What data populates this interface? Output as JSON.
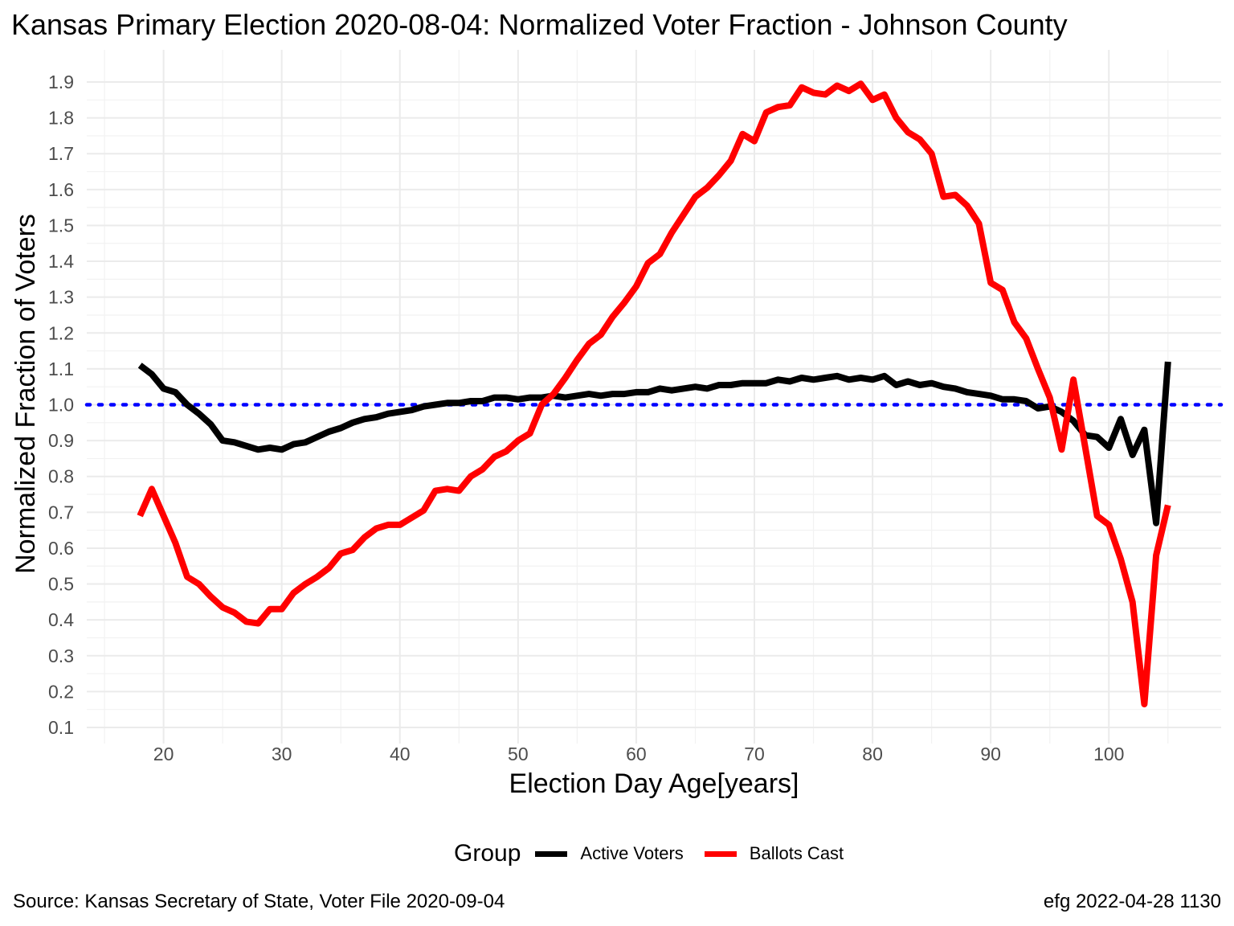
{
  "title": "Kansas Primary Election 2020-08-04:  Normalized Voter Fraction - Johnson County",
  "caption_left": "Source:  Kansas Secretary of State, Voter File  2020-09-04",
  "caption_right": "efg 2022-04-28 1130",
  "legend": {
    "title": "Group",
    "items": [
      {
        "label": "Active Voters",
        "color": "#000000"
      },
      {
        "label": "Ballots Cast",
        "color": "#ff0000"
      }
    ]
  },
  "chart_data": {
    "type": "line",
    "xlabel": "Election Day Age[years]",
    "ylabel": "Normalized Fraction of Voters",
    "xlim": [
      13.5,
      109.5
    ],
    "ylim": [
      0.1,
      1.9
    ],
    "x_ticks": [
      20,
      30,
      40,
      50,
      60,
      70,
      80,
      90,
      100
    ],
    "y_ticks": [
      0.1,
      0.2,
      0.3,
      0.4,
      0.5,
      0.6,
      0.7,
      0.8,
      0.9,
      1.0,
      1.1,
      1.2,
      1.3,
      1.4,
      1.5,
      1.6,
      1.7,
      1.8,
      1.9
    ],
    "y_tick_labels": [
      "0.1",
      "0.2",
      "0.3",
      "0.4",
      "0.5",
      "0.6",
      "0.7",
      "0.8",
      "0.9",
      "1.0",
      "1.1",
      "1.2",
      "1.3",
      "1.4",
      "1.5",
      "1.6",
      "1.7",
      "1.8",
      "1.9"
    ],
    "grid": true,
    "legend_position": "bottom",
    "reference_line": {
      "y": 1.0,
      "color": "#0000ff",
      "style": "dotted"
    },
    "x": [
      18,
      19,
      20,
      21,
      22,
      23,
      24,
      25,
      26,
      27,
      28,
      29,
      30,
      31,
      32,
      33,
      34,
      35,
      36,
      37,
      38,
      39,
      40,
      41,
      42,
      43,
      44,
      45,
      46,
      47,
      48,
      49,
      50,
      51,
      52,
      53,
      54,
      55,
      56,
      57,
      58,
      59,
      60,
      61,
      62,
      63,
      64,
      65,
      66,
      67,
      68,
      69,
      70,
      71,
      72,
      73,
      74,
      75,
      76,
      77,
      78,
      79,
      80,
      81,
      82,
      83,
      84,
      85,
      86,
      87,
      88,
      89,
      90,
      91,
      92,
      93,
      94,
      95,
      96,
      97,
      98,
      99,
      100,
      101,
      102,
      103,
      104,
      105
    ],
    "series": [
      {
        "name": "Active Voters",
        "color": "#000000",
        "values": [
          1.11,
          1.085,
          1.045,
          1.035,
          1.0,
          0.975,
          0.945,
          0.9,
          0.895,
          0.885,
          0.875,
          0.88,
          0.875,
          0.89,
          0.895,
          0.91,
          0.925,
          0.935,
          0.95,
          0.96,
          0.965,
          0.975,
          0.98,
          0.985,
          0.995,
          1.0,
          1.005,
          1.005,
          1.01,
          1.01,
          1.02,
          1.02,
          1.015,
          1.02,
          1.02,
          1.025,
          1.02,
          1.025,
          1.03,
          1.025,
          1.03,
          1.03,
          1.035,
          1.035,
          1.045,
          1.04,
          1.045,
          1.05,
          1.045,
          1.055,
          1.055,
          1.06,
          1.06,
          1.06,
          1.07,
          1.065,
          1.075,
          1.07,
          1.075,
          1.08,
          1.07,
          1.075,
          1.07,
          1.08,
          1.055,
          1.065,
          1.055,
          1.06,
          1.05,
          1.045,
          1.035,
          1.03,
          1.025,
          1.015,
          1.015,
          1.01,
          0.99,
          0.995,
          0.98,
          0.955,
          0.915,
          0.91,
          0.88,
          0.96,
          0.86,
          0.93,
          0.67,
          1.12
        ]
      },
      {
        "name": "Ballots Cast",
        "color": "#ff0000",
        "values": [
          0.69,
          0.765,
          0.69,
          0.615,
          0.52,
          0.5,
          0.465,
          0.435,
          0.42,
          0.395,
          0.39,
          0.43,
          0.43,
          0.475,
          0.5,
          0.52,
          0.545,
          0.585,
          0.595,
          0.63,
          0.655,
          0.665,
          0.665,
          0.685,
          0.705,
          0.76,
          0.765,
          0.76,
          0.8,
          0.82,
          0.855,
          0.87,
          0.9,
          0.92,
          1.0,
          1.03,
          1.075,
          1.125,
          1.17,
          1.195,
          1.245,
          1.285,
          1.33,
          1.395,
          1.42,
          1.48,
          1.53,
          1.58,
          1.605,
          1.64,
          1.68,
          1.755,
          1.735,
          1.815,
          1.83,
          1.835,
          1.885,
          1.87,
          1.865,
          1.89,
          1.875,
          1.895,
          1.85,
          1.865,
          1.8,
          1.76,
          1.74,
          1.7,
          1.58,
          1.585,
          1.555,
          1.505,
          1.34,
          1.32,
          1.23,
          1.185,
          1.1,
          1.02,
          0.875,
          1.07,
          0.88,
          0.69,
          0.665,
          0.57,
          0.45,
          0.165,
          0.58,
          0.72
        ]
      }
    ]
  }
}
